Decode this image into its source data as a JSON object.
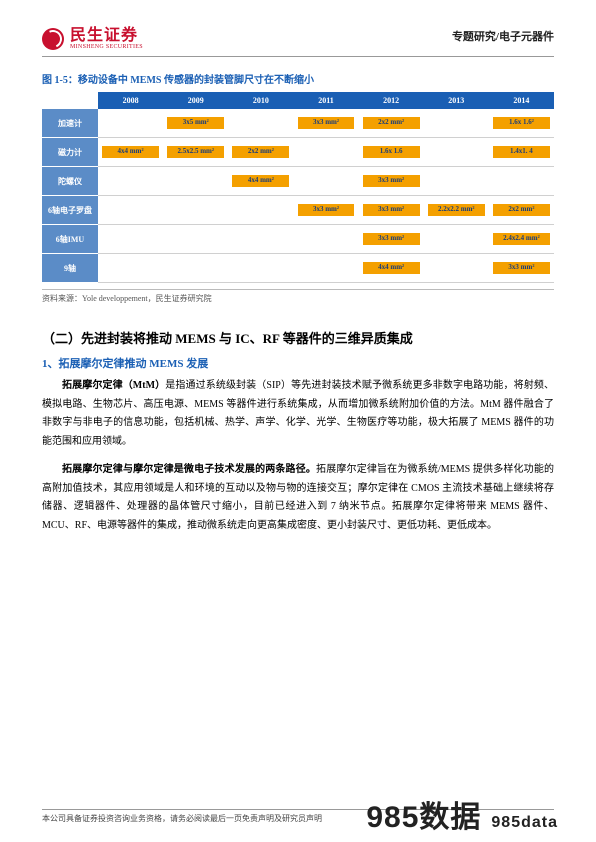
{
  "header": {
    "logo_cn": "民生证券",
    "logo_en": "MINSHENG SECURITIES",
    "right": "专题研究/电子元器件"
  },
  "figure": {
    "title": "图 1-5：移动设备中 MEMS 传感器的封装管脚尺寸在不断缩小",
    "years": [
      "2008",
      "2009",
      "2010",
      "2011",
      "2012",
      "2013",
      "2014"
    ],
    "rows": [
      {
        "label": "加速计",
        "cells": [
          "",
          "3x5 mm²",
          "",
          "3x3 mm²",
          "2x2 mm²",
          "",
          "1.6x 1.6²"
        ]
      },
      {
        "label": "磁力计",
        "cells": [
          "4x4 mm²",
          "2.5x2.5 mm²",
          "2x2 mm²",
          "",
          "1.6x 1.6",
          "",
          "1.4x1. 4"
        ]
      },
      {
        "label": "陀螺仪",
        "cells": [
          "",
          "",
          "4x4 mm²",
          "",
          "3x3 mm²",
          "",
          ""
        ]
      },
      {
        "label": "6轴电子罗盘",
        "cells": [
          "",
          "",
          "",
          "3x3 mm²",
          "3x3 mm²",
          "2.2x2.2 mm²",
          "2x2 mm²"
        ]
      },
      {
        "label": "6轴IMU",
        "cells": [
          "",
          "",
          "",
          "",
          "3x3 mm²",
          "",
          "2.4x2.4 mm²"
        ]
      },
      {
        "label": "9轴",
        "cells": [
          "",
          "",
          "",
          "",
          "4x4 mm²",
          "",
          "3x3 mm²"
        ]
      }
    ],
    "source": "资料来源：Yole developpement，民生证券研究院"
  },
  "section": {
    "heading": "（二）先进封装将推动 MEMS 与 IC、RF 等器件的三维异质集成",
    "sub": "1、拓展摩尔定律推动 MEMS 发展",
    "p1_bold": "拓展摩尔定律（MtM）",
    "p1_rest": "是指通过系统级封装（SIP）等先进封装技术赋予微系统更多非数字电路功能，将射频、模拟电路、生物芯片、高压电源、MEMS 等器件进行系统集成，从而增加微系统附加价值的方法。MtM 器件融合了非数字与非电子的信息功能，包括机械、热学、声学、化学、光学、生物医疗等功能，极大拓展了 MEMS 器件的功能范围和应用领域。",
    "p2_bold": "拓展摩尔定律与摩尔定律是微电子技术发展的两条路径。",
    "p2_rest": "拓展摩尔定律旨在为微系统/MEMS 提供多样化功能的高附加值技术，其应用领域是人和环境的互动以及物与物的连接交互；摩尔定律在 CMOS 主流技术基础上继续将存储器、逻辑器件、处理器的晶体管尺寸缩小，目前已经进入到 7 纳米节点。拓展摩尔定律将带来 MEMS 器件、MCU、RF、电源等器件的集成，推动微系统走向更高集成密度、更小封装尺寸、更低功耗、更低成本。"
  },
  "footer": "本公司具备证券投资咨询业务资格，请务必阅读最后一页免责声明及研究员声明",
  "watermark": {
    "main": "985数据",
    "sub": "985data"
  }
}
